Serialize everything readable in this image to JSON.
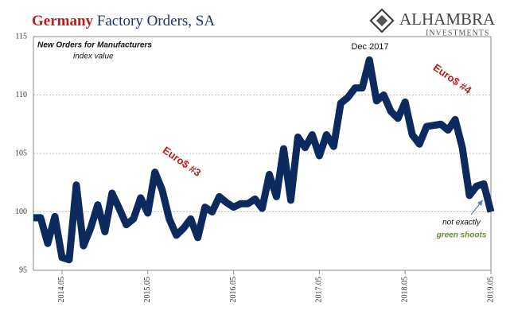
{
  "chart_data": {
    "type": "line",
    "title": {
      "highlight": "Germany",
      "rest": "Factory Orders, SA"
    },
    "subtitle": "New Orders for Manufacturers",
    "unit_note": "index value",
    "logo": {
      "name": "ALHAMBRA",
      "sub": "INVESTMENTS"
    },
    "annotations": [
      "Dec 2017",
      "Euro$ #4",
      "Euro$ #3",
      "not exactly",
      "green shoots"
    ],
    "x": [
      "2014.01",
      "2014.02",
      "2014.03",
      "2014.04",
      "2014.05",
      "2014.06",
      "2014.07",
      "2014.08",
      "2014.09",
      "2014.10",
      "2014.11",
      "2014.12",
      "2015.01",
      "2015.02",
      "2015.03",
      "2015.04",
      "2015.05",
      "2015.06",
      "2015.07",
      "2015.08",
      "2015.09",
      "2015.10",
      "2015.11",
      "2015.12",
      "2016.01",
      "2016.02",
      "2016.03",
      "2016.04",
      "2016.05",
      "2016.06",
      "2016.07",
      "2016.08",
      "2016.09",
      "2016.10",
      "2016.11",
      "2016.12",
      "2017.01",
      "2017.02",
      "2017.03",
      "2017.04",
      "2017.05",
      "2017.06",
      "2017.07",
      "2017.08",
      "2017.09",
      "2017.10",
      "2017.11",
      "2017.12",
      "2018.01",
      "2018.02",
      "2018.03",
      "2018.04",
      "2018.05",
      "2018.06",
      "2018.07",
      "2018.08",
      "2018.09",
      "2018.10",
      "2018.11",
      "2018.12",
      "2019.01",
      "2019.02",
      "2019.03",
      "2019.04",
      "2019.05"
    ],
    "series": [
      {
        "name": "Factory Orders",
        "color": "#0d2a5e",
        "values": [
          99.5,
          99.5,
          97.3,
          99.6,
          96.1,
          95.9,
          102.3,
          97.1,
          98.6,
          100.6,
          98.3,
          101.6,
          100.3,
          98.9,
          99.4,
          101.2,
          99.9,
          103.4,
          101.9,
          99.4,
          98.0,
          98.6,
          99.4,
          97.8,
          100.4,
          100.0,
          101.3,
          100.8,
          100.4,
          100.7,
          100.7,
          101.1,
          100.3,
          103.2,
          101.3,
          105.4,
          101.0,
          106.4,
          105.5,
          106.6,
          104.8,
          106.6,
          105.6,
          109.3,
          109.8,
          110.6,
          110.6,
          113.0,
          109.5,
          110.0,
          108.6,
          108.0,
          109.4,
          106.6,
          105.8,
          107.3,
          107.4,
          107.5,
          107.0,
          107.9,
          105.5,
          101.4,
          102.2,
          102.4,
          100.0
        ]
      }
    ],
    "xticks": [
      "2014.05",
      "2015.05",
      "2016.05",
      "2017.05",
      "2018.05",
      "2019.05"
    ],
    "ylim": [
      95,
      115
    ],
    "yticks": [
      95,
      100,
      105,
      110,
      115
    ],
    "grid": true
  }
}
